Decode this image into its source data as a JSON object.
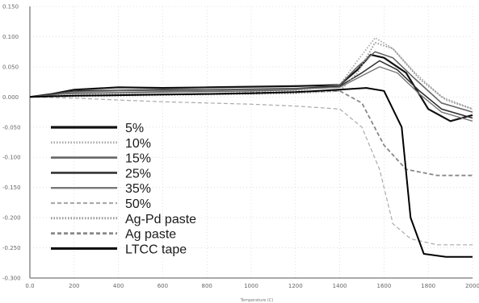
{
  "chart_data": {
    "type": "line",
    "title": "",
    "xlabel": "Temperature (C)",
    "ylabel": "",
    "xlim": [
      0,
      1000
    ],
    "ylim": [
      -0.3,
      0.15
    ],
    "x_ticks": [
      "0.0",
      "200",
      "400",
      "600",
      "800",
      "1000",
      "1200",
      "1400",
      "1600",
      "1800",
      "2000"
    ],
    "y_ticks": [
      "0.150",
      "0.100",
      "0.050",
      "0.000",
      "-0.050",
      "-0.100",
      "-0.150",
      "-0.200",
      "-0.250",
      "-0.300"
    ],
    "grid": true,
    "legend_position": "lower-left",
    "series": [
      {
        "name": "5%",
        "color": "#111111",
        "style": "solid",
        "width": 2.2,
        "points": [
          [
            0,
            0
          ],
          [
            50,
            0.005
          ],
          [
            100,
            0.012
          ],
          [
            200,
            0.016
          ],
          [
            300,
            0.015
          ],
          [
            400,
            0.016
          ],
          [
            500,
            0.017
          ],
          [
            600,
            0.018
          ],
          [
            700,
            0.02
          ],
          [
            740,
            0.045
          ],
          [
            770,
            0.07
          ],
          [
            800,
            0.065
          ],
          [
            850,
            0.04
          ],
          [
            900,
            -0.02
          ],
          [
            950,
            -0.04
          ],
          [
            1000,
            -0.03
          ]
        ]
      },
      {
        "name": "10%",
        "color": "#aaaaaa",
        "style": "dotted",
        "width": 1.8,
        "points": [
          [
            0,
            0
          ],
          [
            50,
            0.003
          ],
          [
            100,
            0.004
          ],
          [
            200,
            0.005
          ],
          [
            300,
            0.004
          ],
          [
            400,
            0.005
          ],
          [
            500,
            0.008
          ],
          [
            600,
            0.01
          ],
          [
            700,
            0.02
          ],
          [
            740,
            0.06
          ],
          [
            780,
            0.098
          ],
          [
            820,
            0.08
          ],
          [
            870,
            0.04
          ],
          [
            930,
            0
          ],
          [
            1000,
            -0.02
          ]
        ]
      },
      {
        "name": "15%",
        "color": "#666666",
        "style": "solid",
        "width": 1.6,
        "points": [
          [
            0,
            0
          ],
          [
            50,
            0.004
          ],
          [
            100,
            0.006
          ],
          [
            200,
            0.007
          ],
          [
            300,
            0.008
          ],
          [
            400,
            0.009
          ],
          [
            500,
            0.01
          ],
          [
            600,
            0.012
          ],
          [
            700,
            0.02
          ],
          [
            740,
            0.05
          ],
          [
            780,
            0.075
          ],
          [
            820,
            0.065
          ],
          [
            870,
            0.03
          ],
          [
            930,
            -0.01
          ],
          [
            1000,
            -0.025
          ]
        ]
      },
      {
        "name": "25%",
        "color": "#333333",
        "style": "solid",
        "width": 1.6,
        "points": [
          [
            0,
            0
          ],
          [
            50,
            0.005
          ],
          [
            100,
            0.01
          ],
          [
            200,
            0.011
          ],
          [
            300,
            0.012
          ],
          [
            400,
            0.012
          ],
          [
            500,
            0.013
          ],
          [
            600,
            0.014
          ],
          [
            700,
            0.018
          ],
          [
            750,
            0.04
          ],
          [
            790,
            0.06
          ],
          [
            830,
            0.045
          ],
          [
            880,
            0.01
          ],
          [
            930,
            -0.02
          ],
          [
            1000,
            -0.035
          ]
        ]
      },
      {
        "name": "35%",
        "color": "#777777",
        "style": "solid",
        "width": 1.4,
        "points": [
          [
            0,
            0
          ],
          [
            50,
            0.003
          ],
          [
            100,
            0.008
          ],
          [
            200,
            0.01
          ],
          [
            300,
            0.01
          ],
          [
            400,
            0.011
          ],
          [
            500,
            0.012
          ],
          [
            600,
            0.013
          ],
          [
            700,
            0.016
          ],
          [
            750,
            0.035
          ],
          [
            790,
            0.05
          ],
          [
            830,
            0.04
          ],
          [
            880,
            0.005
          ],
          [
            930,
            -0.025
          ],
          [
            1000,
            -0.04
          ]
        ]
      },
      {
        "name": "50%",
        "color": "#aaaaaa",
        "style": "dashed",
        "width": 1.2,
        "points": [
          [
            0,
            0
          ],
          [
            100,
            -0.002
          ],
          [
            200,
            -0.005
          ],
          [
            300,
            -0.008
          ],
          [
            400,
            -0.01
          ],
          [
            500,
            -0.012
          ],
          [
            600,
            -0.015
          ],
          [
            700,
            -0.02
          ],
          [
            750,
            -0.05
          ],
          [
            790,
            -0.12
          ],
          [
            820,
            -0.21
          ],
          [
            860,
            -0.235
          ],
          [
            920,
            -0.245
          ],
          [
            1000,
            -0.245
          ]
        ]
      },
      {
        "name": "Ag-Pd paste",
        "color": "#999999",
        "style": "dotted",
        "width": 2.0,
        "points": [
          [
            0,
            0
          ],
          [
            100,
            0.001
          ],
          [
            200,
            0.002
          ],
          [
            300,
            0.003
          ],
          [
            400,
            0.004
          ],
          [
            500,
            0.005
          ],
          [
            600,
            0.006
          ],
          [
            700,
            0.01
          ],
          [
            740,
            0.04
          ],
          [
            780,
            0.09
          ],
          [
            820,
            0.08
          ],
          [
            880,
            0.03
          ],
          [
            940,
            -0.005
          ],
          [
            1000,
            -0.02
          ]
        ]
      },
      {
        "name": "Ag paste",
        "color": "#888888",
        "style": "dashed",
        "width": 1.8,
        "points": [
          [
            0,
            0
          ],
          [
            100,
            0.002
          ],
          [
            200,
            0.003
          ],
          [
            300,
            0.004
          ],
          [
            400,
            0.005
          ],
          [
            500,
            0.007
          ],
          [
            600,
            0.008
          ],
          [
            700,
            0.01
          ],
          [
            750,
            -0.01
          ],
          [
            800,
            -0.08
          ],
          [
            850,
            -0.12
          ],
          [
            920,
            -0.13
          ],
          [
            1000,
            -0.13
          ]
        ]
      },
      {
        "name": "LTCC tape",
        "color": "#000000",
        "style": "solid",
        "width": 2.0,
        "points": [
          [
            0,
            0
          ],
          [
            100,
            0.002
          ],
          [
            200,
            0.003
          ],
          [
            300,
            0.004
          ],
          [
            400,
            0.005
          ],
          [
            500,
            0.006
          ],
          [
            600,
            0.008
          ],
          [
            700,
            0.012
          ],
          [
            760,
            0.015
          ],
          [
            800,
            0.01
          ],
          [
            840,
            -0.05
          ],
          [
            860,
            -0.2
          ],
          [
            890,
            -0.26
          ],
          [
            940,
            -0.265
          ],
          [
            1000,
            -0.265
          ]
        ]
      }
    ]
  }
}
